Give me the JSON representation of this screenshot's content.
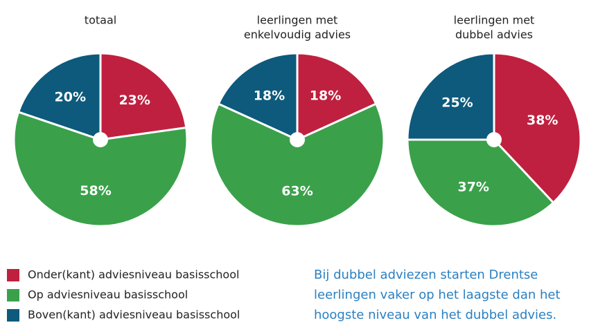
{
  "chart_data": [
    {
      "type": "pie",
      "title": [
        "totaal"
      ],
      "values": [
        23,
        58,
        20
      ],
      "value_labels": [
        "23%",
        "58%",
        "20%"
      ]
    },
    {
      "type": "pie",
      "title": [
        "leerlingen met",
        "enkelvoudig advies"
      ],
      "values": [
        18,
        63,
        18
      ],
      "value_labels": [
        "18%",
        "63%",
        "18%"
      ]
    },
    {
      "type": "pie",
      "title": [
        "leerlingen met",
        "dubbel advies"
      ],
      "values": [
        38,
        37,
        25
      ],
      "value_labels": [
        "38%",
        "37%",
        "25%"
      ]
    }
  ],
  "legend": {
    "labels": [
      "Onder(kant) adviesniveau basisschool",
      "Op adviesniveau basisschool",
      "Boven(kant) adviesniveau basisschool"
    ],
    "colors": [
      "#c0203f",
      "#3aa14a",
      "#0d5a7c"
    ]
  },
  "note": [
    "Bij dubbel adviezen starten Drentse",
    "leerlingen vaker op het laagste dan het",
    "hoogste niveau van het dubbel advies."
  ]
}
